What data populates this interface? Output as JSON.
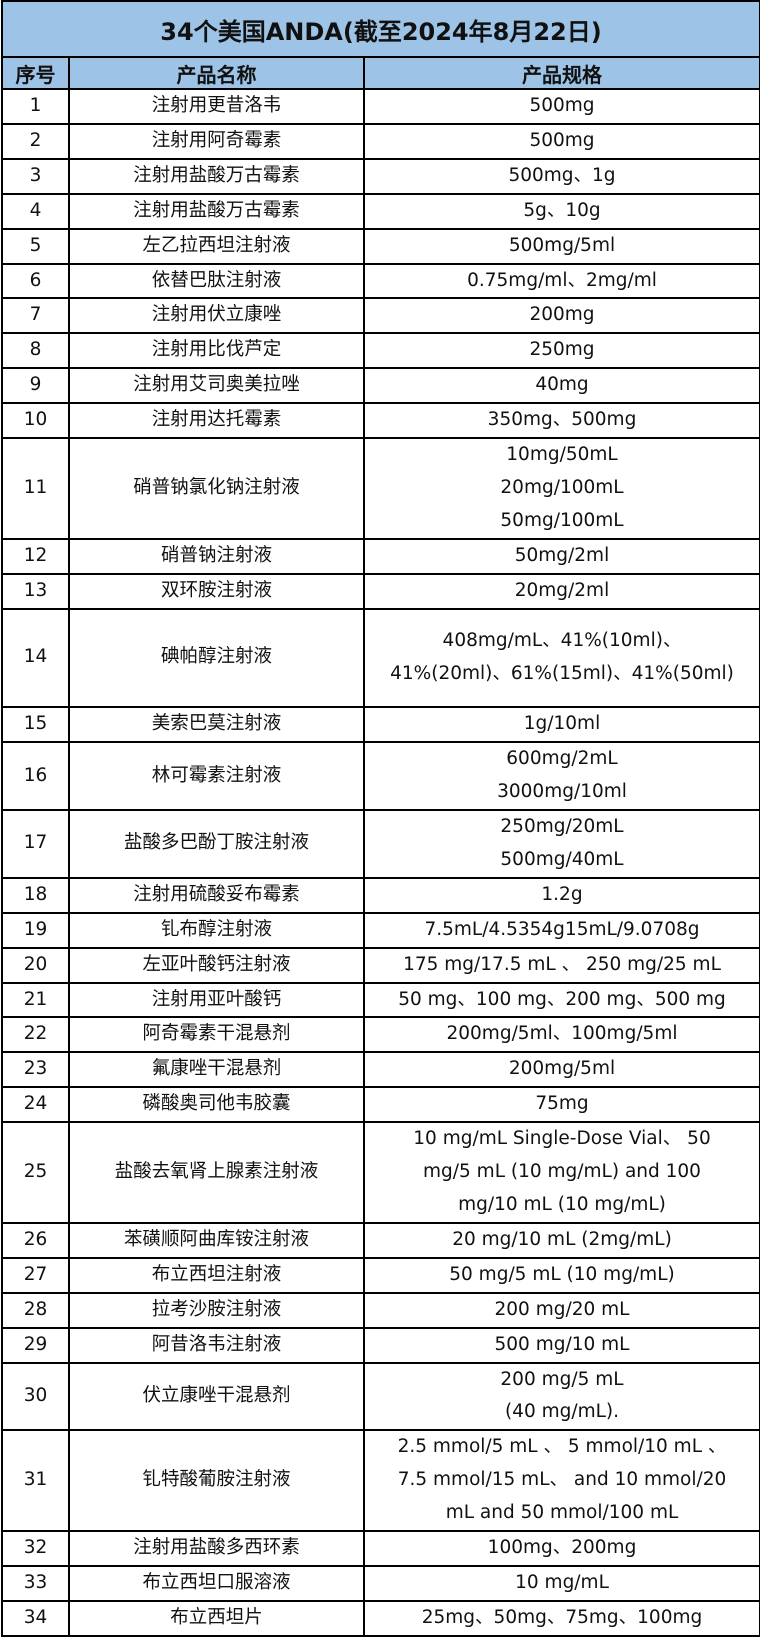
{
  "title": "34个美国ANDA(截至2024年8月22日)",
  "headers": [
    "序号",
    "产品名称",
    "产品规格"
  ],
  "rows": [
    {
      "no": "1",
      "name": "注射用更昔洛韦",
      "spec": "500mg"
    },
    {
      "no": "2",
      "name": "注射用阿奇霉素",
      "spec": "500mg"
    },
    {
      "no": "3",
      "name": "注射用盐酸万古霉素",
      "spec": "500mg、1g"
    },
    {
      "no": "4",
      "name": "注射用盐酸万古霉素",
      "spec": "5g、10g"
    },
    {
      "no": "5",
      "name": "左乙拉西坦注射液",
      "spec": "500mg/5ml"
    },
    {
      "no": "6",
      "name": "依替巴肽注射液",
      "spec": "0.75mg/ml、2mg/ml"
    },
    {
      "no": "7",
      "name": "注射用伏立康唑",
      "spec": "200mg"
    },
    {
      "no": "8",
      "name": "注射用比伐芦定",
      "spec": "250mg"
    },
    {
      "no": "9",
      "name": "注射用艾司奥美拉唑",
      "spec": "40mg"
    },
    {
      "no": "10",
      "name": "注射用达托霉素",
      "spec": "350mg、500mg"
    },
    {
      "no": "11",
      "name": "硝普钠氯化钠注射液",
      "spec": "10mg/50mL\n20mg/100mL\n50mg/100mL"
    },
    {
      "no": "12",
      "name": "硝普钠注射液",
      "spec": "50mg/2ml"
    },
    {
      "no": "13",
      "name": "双环胺注射液",
      "spec": "20mg/2ml"
    },
    {
      "no": "14",
      "name": "碘帕醇注射液",
      "spec": "408mg/mL、41%(10ml)、\n41%(20ml)、61%(15ml)、41%(50ml)"
    },
    {
      "no": "15",
      "name": "美索巴莫注射液",
      "spec": "1g/10ml"
    },
    {
      "no": "16",
      "name": "林可霉素注射液",
      "spec": "600mg/2mL\n3000mg/10ml"
    },
    {
      "no": "17",
      "name": "盐酸多巴酚丁胺注射液",
      "spec": "250mg/20mL\n500mg/40mL"
    },
    {
      "no": "18",
      "name": "注射用硫酸妥布霉素",
      "spec": "1.2g"
    },
    {
      "no": "19",
      "name": "钆布醇注射液",
      "spec": "7.5mL/4.5354g15mL/9.0708g"
    },
    {
      "no": "20",
      "name": "左亚叶酸钙注射液",
      "spec": "175 mg/17.5 mL 、 250 mg/25 mL"
    },
    {
      "no": "21",
      "name": "注射用亚叶酸钙",
      "spec": "50 mg、100 mg、200 mg、500 mg"
    },
    {
      "no": "22",
      "name": "阿奇霉素干混悬剂",
      "spec": "200mg/5ml、100mg/5ml"
    },
    {
      "no": "23",
      "name": "氟康唑干混悬剂",
      "spec": "200mg/5ml"
    },
    {
      "no": "24",
      "name": "磷酸奥司他韦胶囊",
      "spec": "75mg"
    },
    {
      "no": "25",
      "name": "盐酸去氧肾上腺素注射液",
      "spec": "10 mg/mL Single-Dose Vial、 50\nmg/5 mL (10 mg/mL) and 100\nmg/10 mL (10 mg/mL)"
    },
    {
      "no": "26",
      "name": "苯磺顺阿曲库铵注射液",
      "spec": "20 mg/10 mL (2mg/mL)"
    },
    {
      "no": "27",
      "name": "布立西坦注射液",
      "spec": "50 mg/5 mL (10 mg/mL)"
    },
    {
      "no": "28",
      "name": "拉考沙胺注射液",
      "spec": "200 mg/20 mL"
    },
    {
      "no": "29",
      "name": "阿昔洛韦注射液",
      "spec": "500 mg/10 mL"
    },
    {
      "no": "30",
      "name": "伏立康唑干混悬剂",
      "spec": "200 mg/5 mL\n(40 mg/mL)."
    },
    {
      "no": "31",
      "name": "钆特酸葡胺注射液",
      "spec": "2.5 mmol/5 mL 、 5 mmol/10 mL 、\n7.5 mmol/15 mL、 and 10 mmol/20\nmL and 50 mmol/100 mL"
    },
    {
      "no": "32",
      "name": "注射用盐酸多西环素",
      "spec": "100mg、200mg"
    },
    {
      "no": "33",
      "name": "布立西坦口服溶液",
      "spec": "10 mg/mL"
    },
    {
      "no": "34",
      "name": "布立西坦片",
      "spec": "25mg、50mg、75mg、100mg"
    }
  ]
}
